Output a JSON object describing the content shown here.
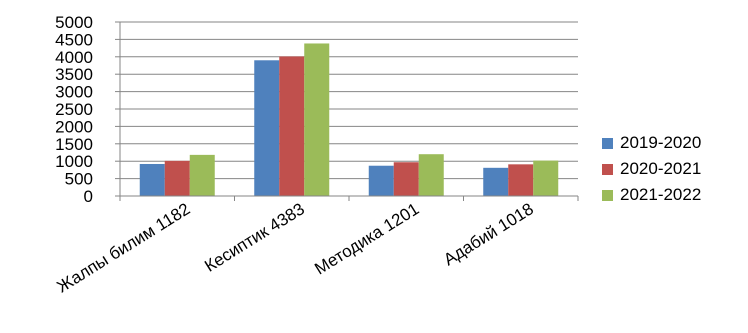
{
  "chart_data": {
    "type": "bar",
    "categories": [
      "Жалпы билим 1182",
      "Кесиптик 4383",
      "Методика 1201",
      "Адабий 1018"
    ],
    "series": [
      {
        "name": "2019-2020",
        "values": [
          920,
          3900,
          870,
          810
        ],
        "color": "#4F81BD"
      },
      {
        "name": "2020-2021",
        "values": [
          1010,
          4010,
          970,
          910
        ],
        "color": "#C0504D"
      },
      {
        "name": "2021-2022",
        "values": [
          1182,
          4383,
          1201,
          1018
        ],
        "color": "#9BBB59"
      }
    ],
    "ylim": [
      0,
      5000
    ],
    "yticks": [
      0,
      500,
      1000,
      1500,
      2000,
      2500,
      3000,
      3500,
      4000,
      4500,
      5000
    ],
    "grid": true,
    "legend_position": "right",
    "title": "",
    "xlabel": "",
    "ylabel": ""
  }
}
